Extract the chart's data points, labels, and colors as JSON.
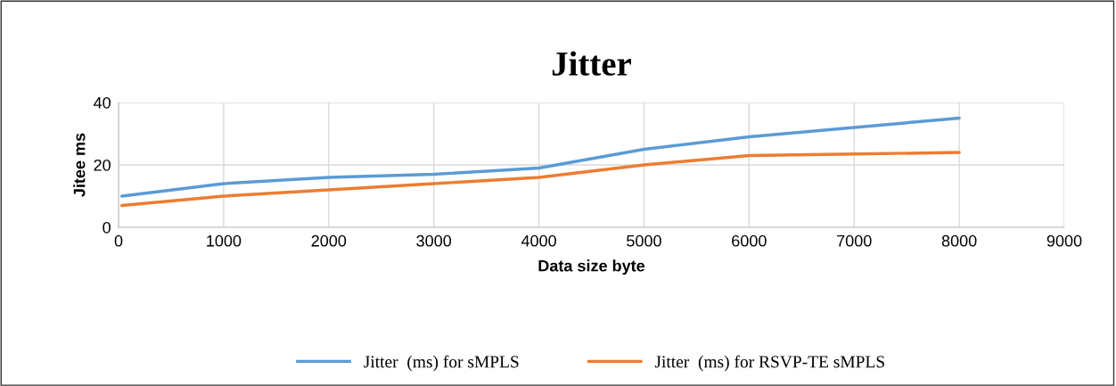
{
  "chart_data": {
    "type": "line",
    "title": "Jitter",
    "xlabel": "Data size byte",
    "ylabel": "Jitee ms",
    "x": [
      32,
      1000,
      2000,
      3000,
      4000,
      5000,
      6000,
      7000,
      8000
    ],
    "series": [
      {
        "name": "Jitter  (ms) for sMPLS",
        "color": "#5b9bd5",
        "values": [
          10,
          14,
          16,
          17,
          19,
          25,
          29,
          32,
          35
        ]
      },
      {
        "name": "Jitter  (ms) for RSVP-TE sMPLS",
        "color": "#ed7d31",
        "values": [
          7,
          10,
          12,
          14,
          16,
          20,
          23,
          23.5,
          24
        ]
      }
    ],
    "xlim": [
      0,
      9000
    ],
    "xticks": [
      0,
      1000,
      2000,
      3000,
      4000,
      5000,
      6000,
      7000,
      8000,
      9000
    ],
    "ylim": [
      0,
      40
    ],
    "yticks": [
      0,
      20,
      40
    ],
    "grid": true,
    "legend": "bottom",
    "marker": "none",
    "line_style": "solid"
  }
}
